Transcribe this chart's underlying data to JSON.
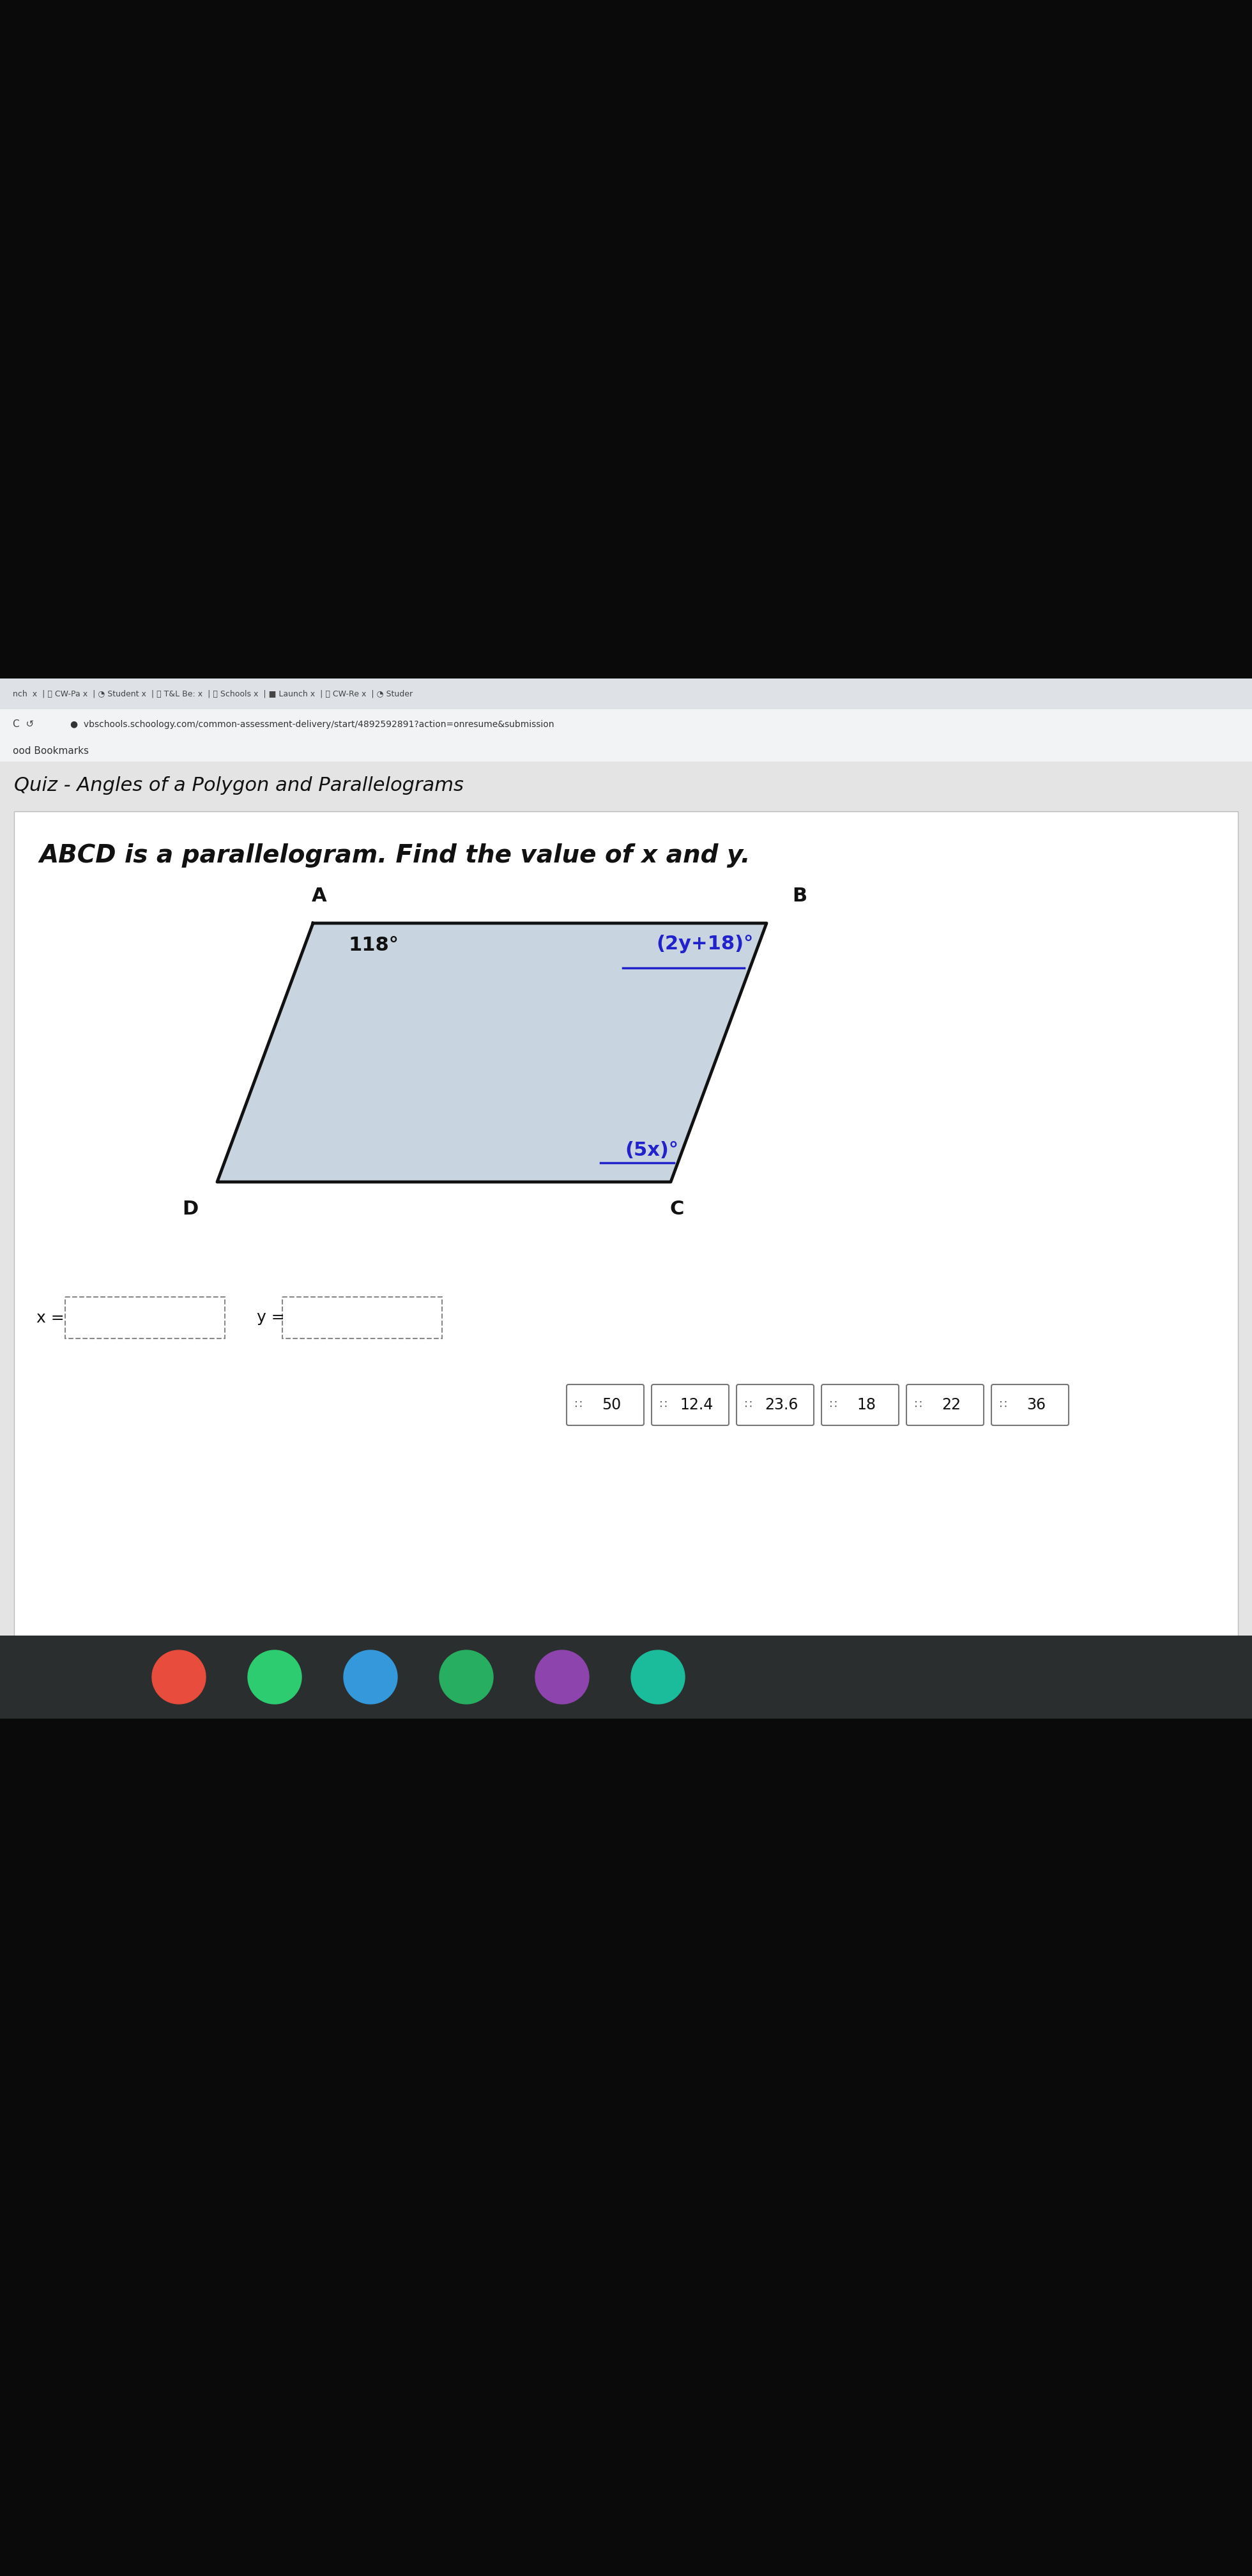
{
  "title": "ABCD is a parallelogram. Find the value of x and y.",
  "quiz_header": "Quiz - Angles of a Polygon and Parallelograms",
  "url": "vbschools.schoology.com/common-assessment-delivery/start/4892592891?action=onresume&submission",
  "angle_A": "118°",
  "angle_B": "(2y+18)°",
  "angle_C": "(5x)°",
  "vertex_A": "A",
  "vertex_B": "B",
  "vertex_C": "C",
  "vertex_D": "D",
  "answer_choices": [
    "50",
    "12.4",
    "23.6",
    "18",
    "22",
    "36"
  ],
  "input_x_label": "x =",
  "input_y_label": "y =",
  "card_bg": "#ffffff",
  "parallelogram_fill": "#c8d4df",
  "parallelogram_edge": "#111111",
  "tab_bar_color": "#dee1e6",
  "browser_bar_color": "#f1f3f4",
  "screen_bg": "#0a0a0a",
  "font_color": "#111111",
  "page_bg": "#e4e4e4",
  "taskbar_bg": "#2a2e2e",
  "tab_text_color": "#444444"
}
